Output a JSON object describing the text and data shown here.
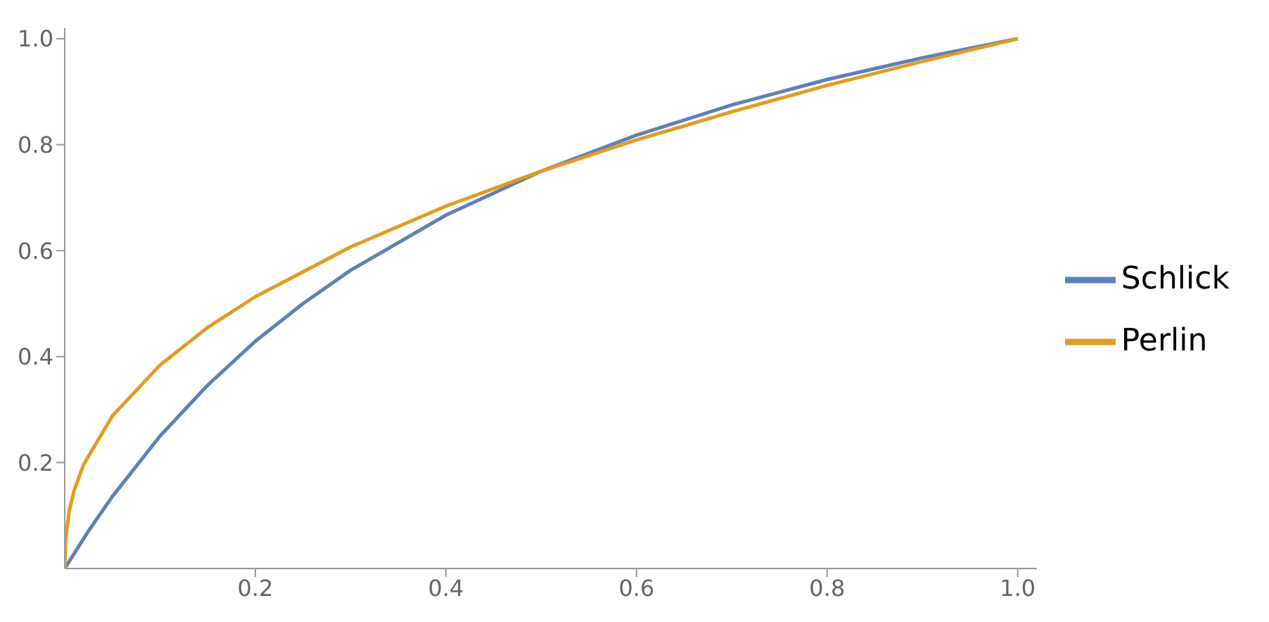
{
  "chart_data": {
    "type": "line",
    "xlim": [
      0,
      1.02
    ],
    "ylim": [
      0,
      1.02
    ],
    "xticks": [
      0.2,
      0.4,
      0.6,
      0.8,
      {
        "value": 1,
        "label": "1.0"
      }
    ],
    "yticks": [
      0.2,
      0.4,
      0.6,
      0.8,
      {
        "value": 1,
        "label": "1.0"
      }
    ],
    "legend": "right",
    "grid": false,
    "marker": "none",
    "line_style": "solid",
    "series": [
      {
        "name": "Schlick",
        "color": "#5e81b5",
        "x": [
          0,
          0.025,
          0.05,
          0.1,
          0.15,
          0.2,
          0.25,
          0.3,
          0.4,
          0.5,
          0.6,
          0.7,
          0.8,
          0.9,
          1
        ],
        "values": [
          0,
          0.071,
          0.136,
          0.25,
          0.346,
          0.429,
          0.5,
          0.563,
          0.667,
          0.75,
          0.818,
          0.875,
          0.923,
          0.964,
          1
        ]
      },
      {
        "name": "Perlin",
        "color": "#e19c24",
        "x": [
          0,
          0.001,
          0.005,
          0.01,
          0.02,
          0.05,
          0.1,
          0.15,
          0.2,
          0.3,
          0.4,
          0.5,
          0.6,
          0.7,
          0.8,
          0.9,
          1
        ],
        "values": [
          0,
          0.057,
          0.111,
          0.148,
          0.197,
          0.288,
          0.384,
          0.455,
          0.513,
          0.607,
          0.684,
          0.75,
          0.809,
          0.862,
          0.912,
          0.957,
          1
        ]
      }
    ]
  }
}
